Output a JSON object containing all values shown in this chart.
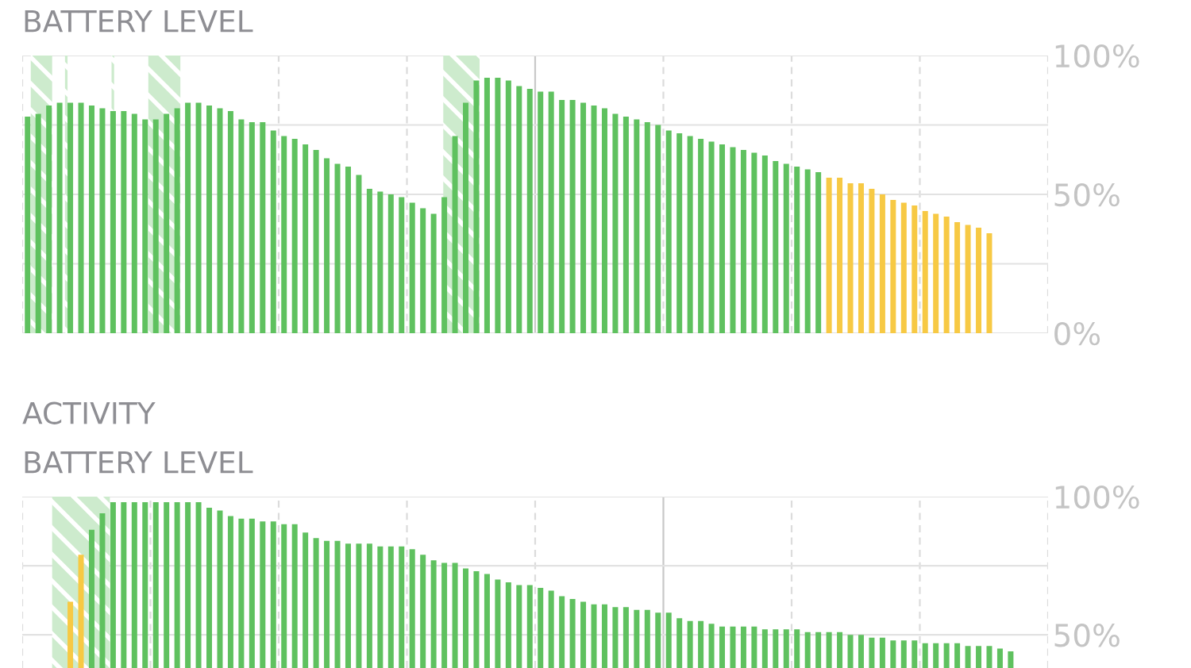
{
  "chart_data": [
    {
      "type": "bar",
      "title": "BATTERY LEVEL",
      "categories": [
        null,
        null,
        null,
        null,
        null,
        null,
        null,
        null,
        null,
        null,
        null,
        null,
        null,
        null,
        null,
        null,
        null,
        null,
        null,
        null,
        null,
        null,
        null,
        null,
        null,
        null,
        null,
        null,
        null,
        null,
        null,
        null,
        null,
        null,
        null,
        null,
        null,
        null,
        null,
        null,
        null,
        null,
        null,
        null,
        null,
        null,
        null,
        null,
        null,
        null,
        null,
        null,
        null,
        null,
        null,
        null,
        null,
        null,
        null,
        null,
        null,
        null,
        null,
        null,
        null,
        null,
        null,
        null,
        null,
        null,
        null,
        null,
        null,
        null,
        null,
        null,
        null,
        null,
        null,
        null,
        null,
        null,
        null,
        null,
        null,
        null,
        null,
        null,
        null,
        null,
        null,
        null,
        null,
        null,
        null,
        null
      ],
      "ylim": [
        0,
        100
      ],
      "yticks": [
        {
          "value": 0,
          "label": "0%"
        },
        {
          "value": 25,
          "label": null
        },
        {
          "value": 50,
          "label": "50%"
        },
        {
          "value": 75,
          "label": null
        },
        {
          "value": 100,
          "label": "100%"
        }
      ],
      "tick_labels": "y",
      "grid": true,
      "legend": false,
      "series": [
        {
          "color": "#5fc15f",
          "values": [
            78,
            79,
            82,
            83,
            83,
            83,
            82,
            81,
            80,
            80,
            79,
            77,
            77,
            79,
            81,
            83,
            83,
            82,
            81,
            80,
            77,
            76,
            76,
            73,
            71,
            70,
            68,
            66,
            63,
            61,
            60,
            57,
            52,
            51,
            50,
            49,
            47,
            45,
            43,
            49,
            71,
            83,
            91,
            92,
            92,
            91,
            89,
            88,
            87,
            87,
            84,
            84,
            83,
            82,
            81,
            79,
            78,
            77,
            76,
            75,
            73,
            72,
            71,
            70,
            69,
            68,
            67,
            66,
            65,
            64,
            62,
            61,
            60,
            59,
            58,
            null,
            null,
            null,
            null,
            null,
            null,
            null,
            null,
            null,
            null,
            null,
            null,
            null,
            null,
            null,
            null,
            null,
            null,
            null,
            null,
            null
          ]
        },
        {
          "color": "#f7c944",
          "values": [
            null,
            null,
            null,
            null,
            null,
            null,
            null,
            null,
            null,
            null,
            null,
            null,
            null,
            null,
            null,
            null,
            null,
            null,
            null,
            null,
            null,
            null,
            null,
            null,
            null,
            null,
            null,
            null,
            null,
            null,
            null,
            null,
            null,
            null,
            null,
            null,
            null,
            null,
            null,
            null,
            null,
            null,
            null,
            null,
            null,
            null,
            null,
            null,
            null,
            null,
            null,
            null,
            null,
            null,
            null,
            null,
            null,
            null,
            null,
            null,
            null,
            null,
            null,
            null,
            null,
            null,
            null,
            null,
            null,
            null,
            null,
            null,
            null,
            null,
            null,
            56,
            56,
            54,
            54,
            52,
            50,
            48,
            47,
            46,
            44,
            43,
            42,
            40,
            39,
            38,
            36,
            null,
            null,
            null,
            null,
            null
          ]
        }
      ]
    },
    {
      "type": "bar",
      "title": "ACTIVITY",
      "subtitle": "BATTERY LEVEL",
      "categories": [
        null,
        null,
        null,
        null,
        null,
        null,
        null,
        null,
        null,
        null,
        null,
        null,
        null,
        null,
        null,
        null,
        null,
        null,
        null,
        null,
        null,
        null,
        null,
        null,
        null,
        null,
        null,
        null,
        null,
        null,
        null,
        null,
        null,
        null,
        null,
        null,
        null,
        null,
        null,
        null,
        null,
        null,
        null,
        null,
        null,
        null,
        null,
        null,
        null,
        null,
        null,
        null,
        null,
        null,
        null,
        null,
        null,
        null,
        null,
        null,
        null,
        null,
        null,
        null,
        null,
        null,
        null,
        null,
        null,
        null,
        null,
        null,
        null,
        null,
        null,
        null,
        null,
        null,
        null,
        null,
        null,
        null,
        null,
        null,
        null,
        null,
        null,
        null,
        null,
        null,
        null,
        null,
        null,
        null,
        null,
        null
      ],
      "ylim": [
        38,
        100
      ],
      "yticks": [
        {
          "value": 50,
          "label": "50%"
        },
        {
          "value": 75,
          "label": null
        },
        {
          "value": 100,
          "label": "100%"
        }
      ],
      "tick_labels": "y",
      "grid": true,
      "legend": false,
      "series": [
        {
          "color": "#f7c944",
          "values": [
            null,
            null,
            null,
            null,
            62,
            79,
            null,
            null,
            null,
            null,
            null,
            null,
            null,
            null,
            null,
            null,
            null,
            null,
            null,
            null,
            null,
            null,
            null,
            null,
            null,
            null,
            null,
            null,
            null,
            null,
            null,
            null,
            null,
            null,
            null,
            null,
            null,
            null,
            null,
            null,
            null,
            null,
            null,
            null,
            null,
            null,
            null,
            null,
            null,
            null,
            null,
            null,
            null,
            null,
            null,
            null,
            null,
            null,
            null,
            null,
            null,
            null,
            null,
            null,
            null,
            null,
            null,
            null,
            null,
            null,
            null,
            null,
            null,
            null,
            null,
            null,
            null,
            null,
            null,
            null,
            null,
            null,
            null,
            null,
            null,
            null,
            null,
            null,
            null,
            null,
            null,
            null,
            null,
            null,
            null,
            null
          ]
        },
        {
          "color": "#5fc15f",
          "values": [
            null,
            null,
            null,
            null,
            null,
            null,
            88,
            94,
            98,
            98,
            98,
            98,
            98,
            98,
            98,
            98,
            98,
            96,
            95,
            93,
            92,
            92,
            91,
            91,
            90,
            90,
            87,
            85,
            84,
            84,
            83,
            83,
            83,
            82,
            82,
            82,
            81,
            79,
            77,
            76,
            76,
            74,
            73,
            72,
            70,
            69,
            68,
            68,
            67,
            66,
            64,
            63,
            62,
            61,
            61,
            60,
            60,
            59,
            59,
            58,
            58,
            56,
            55,
            55,
            54,
            53,
            53,
            53,
            53,
            52,
            52,
            52,
            52,
            51,
            51,
            51,
            51,
            50,
            50,
            49,
            49,
            48,
            48,
            48,
            47,
            47,
            47,
            47,
            46,
            46,
            46,
            45,
            44,
            null,
            null,
            null
          ]
        }
      ]
    }
  ]
}
